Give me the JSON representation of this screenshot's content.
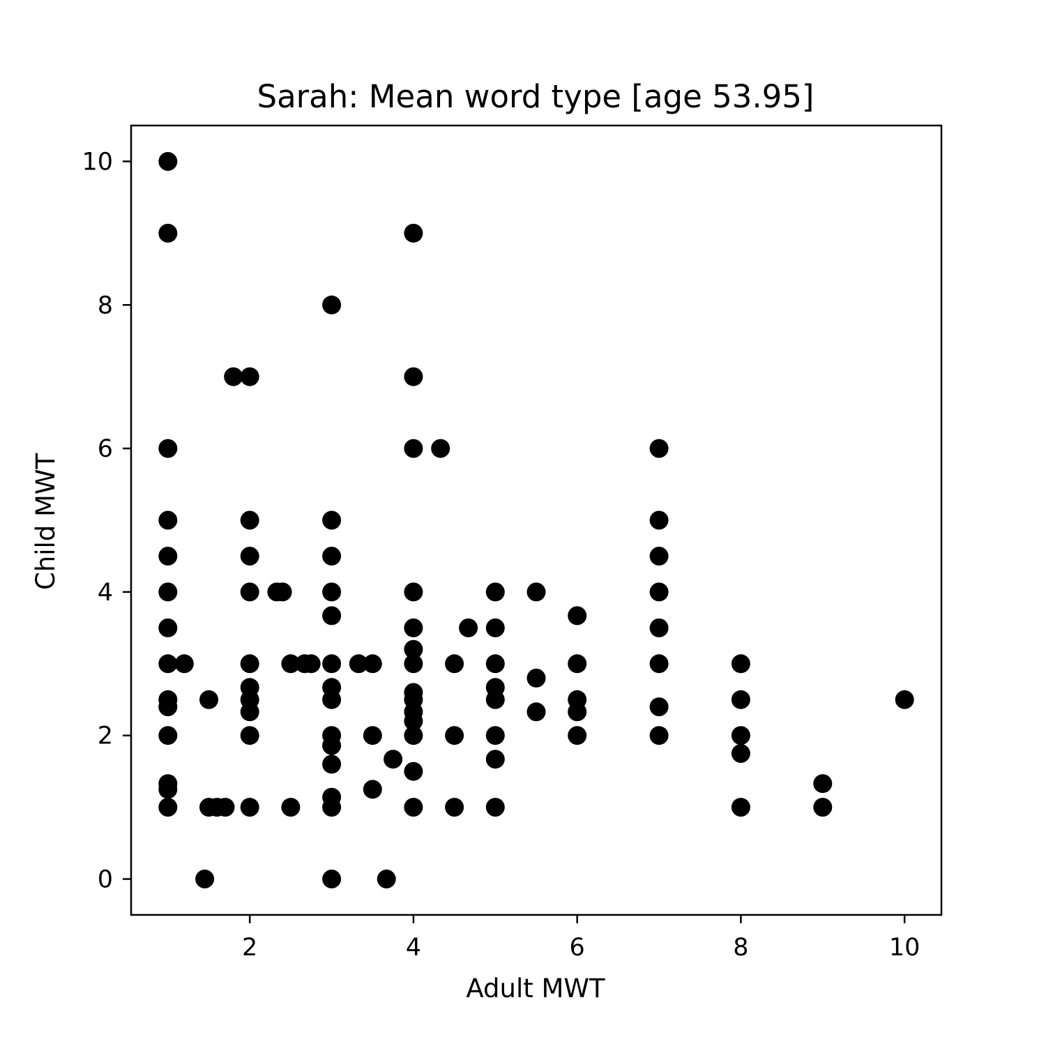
{
  "chart_data": {
    "type": "scatter",
    "title": "Sarah: Mean word type [age 53.95]",
    "xlabel": "Adult MWT",
    "ylabel": "Child MWT",
    "xlim": [
      0.55,
      10.45
    ],
    "ylim": [
      -0.5,
      10.5
    ],
    "xticks": [
      2,
      4,
      6,
      8,
      10
    ],
    "yticks": [
      0,
      2,
      4,
      6,
      8,
      10
    ],
    "grid": false,
    "marker_color": "#000000",
    "series": [
      {
        "points": [
          [
            1,
            10
          ],
          [
            1,
            9
          ],
          [
            1,
            6
          ],
          [
            1,
            5
          ],
          [
            1,
            4.5
          ],
          [
            1,
            4
          ],
          [
            1,
            3.5
          ],
          [
            1,
            3
          ],
          [
            1,
            2.5
          ],
          [
            1,
            2.4
          ],
          [
            1,
            2
          ],
          [
            1,
            1.33
          ],
          [
            1,
            1.25
          ],
          [
            1,
            1
          ],
          [
            1.2,
            3
          ],
          [
            1.45,
            0
          ],
          [
            1.5,
            2.5
          ],
          [
            1.5,
            1
          ],
          [
            1.6,
            1
          ],
          [
            1.7,
            1
          ],
          [
            1.8,
            7
          ],
          [
            2,
            7
          ],
          [
            2,
            5
          ],
          [
            2,
            4.5
          ],
          [
            2,
            4
          ],
          [
            2,
            3
          ],
          [
            2,
            2.67
          ],
          [
            2,
            2.5
          ],
          [
            2,
            2.33
          ],
          [
            2,
            2
          ],
          [
            2,
            1
          ],
          [
            2.33,
            4
          ],
          [
            2.4,
            4
          ],
          [
            2.5,
            3
          ],
          [
            2.5,
            1
          ],
          [
            2.67,
            3
          ],
          [
            2.75,
            3
          ],
          [
            3,
            8
          ],
          [
            3,
            5
          ],
          [
            3,
            4.5
          ],
          [
            3,
            4
          ],
          [
            3,
            3.67
          ],
          [
            3,
            3
          ],
          [
            3,
            2.67
          ],
          [
            3,
            2.5
          ],
          [
            3,
            2
          ],
          [
            3,
            1.86
          ],
          [
            3,
            1.6
          ],
          [
            3,
            1.14
          ],
          [
            3,
            1
          ],
          [
            3,
            0
          ],
          [
            3.33,
            3
          ],
          [
            3.5,
            3
          ],
          [
            3.5,
            2
          ],
          [
            3.5,
            1.25
          ],
          [
            3.67,
            0
          ],
          [
            3.75,
            1.67
          ],
          [
            4,
            9
          ],
          [
            4,
            7
          ],
          [
            4,
            6
          ],
          [
            4,
            4
          ],
          [
            4,
            3.5
          ],
          [
            4,
            3.2
          ],
          [
            4,
            3
          ],
          [
            4,
            2.6
          ],
          [
            4,
            2.5
          ],
          [
            4,
            2.33
          ],
          [
            4,
            2.2
          ],
          [
            4,
            2
          ],
          [
            4,
            1.5
          ],
          [
            4,
            1
          ],
          [
            4.33,
            6
          ],
          [
            4.5,
            3
          ],
          [
            4.5,
            2
          ],
          [
            4.5,
            1
          ],
          [
            4.67,
            3.5
          ],
          [
            5,
            4
          ],
          [
            5,
            3.5
          ],
          [
            5,
            3
          ],
          [
            5,
            2.67
          ],
          [
            5,
            2.5
          ],
          [
            5,
            2
          ],
          [
            5,
            1.67
          ],
          [
            5,
            1
          ],
          [
            5.5,
            4
          ],
          [
            5.5,
            2.8
          ],
          [
            5.5,
            2.33
          ],
          [
            6,
            3.67
          ],
          [
            6,
            3
          ],
          [
            6,
            2.5
          ],
          [
            6,
            2.33
          ],
          [
            6,
            2
          ],
          [
            7,
            6
          ],
          [
            7,
            5
          ],
          [
            7,
            4.5
          ],
          [
            7,
            4
          ],
          [
            7,
            3.5
          ],
          [
            7,
            3
          ],
          [
            7,
            2.4
          ],
          [
            7,
            2
          ],
          [
            8,
            3
          ],
          [
            8,
            2.5
          ],
          [
            8,
            2
          ],
          [
            8,
            1.75
          ],
          [
            8,
            1
          ],
          [
            9,
            1.33
          ],
          [
            9,
            1
          ],
          [
            10,
            2.5
          ]
        ]
      }
    ]
  }
}
